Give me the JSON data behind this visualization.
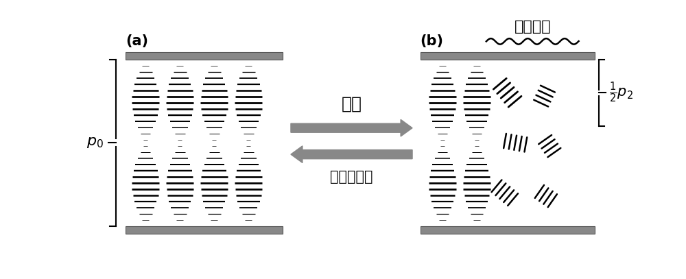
{
  "fig_width": 10.0,
  "fig_height": 4.07,
  "dpi": 100,
  "bg_color": "#ffffff",
  "label_a": "(a)",
  "label_b": "(b)",
  "text_guangzhao": "光照",
  "text_changwen": "常温或加热",
  "text_guangzhao_quyu": "光照区域",
  "plate_color": "#888888",
  "lc_color": "#000000",
  "arrow_color": "#888888",
  "font_size_label": 15,
  "font_size_chinese": 18,
  "font_size_p": 13
}
